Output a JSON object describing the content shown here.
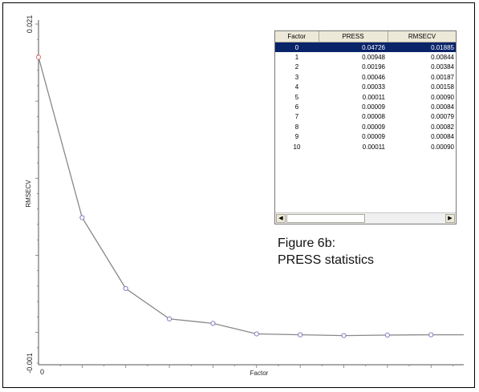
{
  "chart_data": {
    "type": "line",
    "xlabel": "Factor",
    "ylabel": "RMSECV",
    "ylim": [
      -0.001,
      0.021
    ],
    "yticks": [
      "0.021",
      "-0.001"
    ],
    "xticks": [
      "0"
    ],
    "x": [
      0,
      1,
      2,
      3,
      4,
      5,
      6,
      7,
      8,
      9
    ],
    "series": [
      {
        "values": [
          0.01885,
          0.00844,
          0.00384,
          0.00187,
          0.00158,
          0.0009,
          0.00084,
          0.00079,
          0.00082,
          0.00084
        ],
        "color": "#888888",
        "marker_color": "#8080c0",
        "first_marker_color": "#e07070"
      }
    ],
    "grid": false
  },
  "table": {
    "headers": [
      "Factor",
      "PRESS",
      "RMSECV"
    ],
    "rows": [
      [
        "0",
        "0.04726",
        "0.01885"
      ],
      [
        "1",
        "0.00948",
        "0.00844"
      ],
      [
        "2",
        "0.00196",
        "0.00384"
      ],
      [
        "3",
        "0.00046",
        "0.00187"
      ],
      [
        "4",
        "0.00033",
        "0.00158"
      ],
      [
        "5",
        "0.00011",
        "0.00090"
      ],
      [
        "6",
        "0.00009",
        "0.00084"
      ],
      [
        "7",
        "0.00008",
        "0.00079"
      ],
      [
        "8",
        "0.00009",
        "0.00082"
      ],
      [
        "9",
        "0.00009",
        "0.00084"
      ],
      [
        "10",
        "0.00011",
        "0.00090"
      ]
    ],
    "selected_row": 0,
    "scroll_left_icon": "arrow-left-icon",
    "scroll_right_icon": "arrow-right-icon"
  },
  "caption": {
    "line1": "Figure 6b:",
    "line2": "PRESS statistics"
  },
  "colors": {
    "selection": "#0a246a",
    "header": "#ece9d8"
  }
}
